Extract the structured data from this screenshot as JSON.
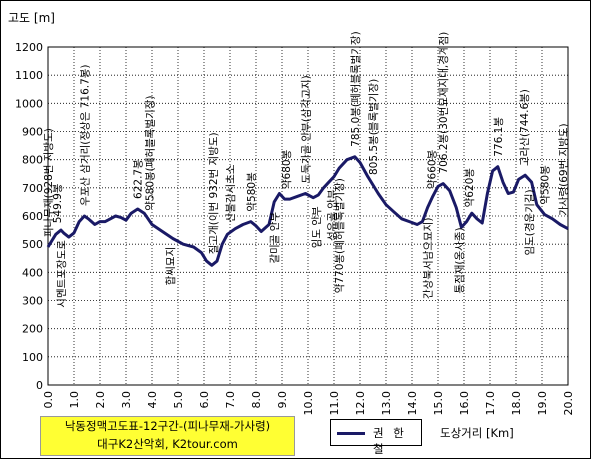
{
  "chart_data": {
    "type": "line",
    "ylabel": "고도 [m]",
    "xlabel": "도상거리 [Km]",
    "xlim": [
      0,
      20
    ],
    "ylim": [
      0,
      1200
    ],
    "x_ticks": [
      "0.0",
      "1.0",
      "2.0",
      "3.0",
      "4.0",
      "5.0",
      "6.0",
      "7.0",
      "8.0",
      "9.0",
      "10.0",
      "11.0",
      "12.0",
      "13.0",
      "14.0",
      "15.0",
      "16.0",
      "17.0",
      "18.0",
      "19.0",
      "20.0"
    ],
    "y_ticks": [
      "0",
      "100",
      "200",
      "300",
      "400",
      "500",
      "600",
      "700",
      "800",
      "900",
      "1000",
      "1100",
      "1200"
    ],
    "grid": true,
    "title_lines": [
      "낙동정맥고도표-12구간-(피나무재-가사령)",
      "대구K2산악회, K2tour.com"
    ],
    "series": [
      {
        "name": "권 한 철",
        "color": "#1a1a66",
        "x": [
          0.0,
          0.3,
          0.5,
          0.6,
          0.8,
          1.0,
          1.2,
          1.4,
          1.55,
          1.8,
          2.0,
          2.2,
          2.4,
          2.6,
          2.8,
          3.0,
          3.2,
          3.45,
          3.7,
          4.0,
          4.4,
          4.8,
          5.2,
          5.6,
          5.9,
          6.1,
          6.3,
          6.5,
          6.7,
          6.9,
          7.2,
          7.5,
          7.8,
          8.0,
          8.2,
          8.5,
          8.7,
          8.9,
          9.1,
          9.3,
          9.6,
          9.9,
          10.2,
          10.4,
          10.6,
          10.8,
          11.0,
          11.2,
          11.5,
          11.8,
          12.0,
          12.3,
          12.5,
          12.7,
          13.0,
          13.3,
          13.6,
          13.9,
          14.2,
          14.4,
          14.6,
          14.8,
          15.0,
          15.2,
          15.45,
          15.7,
          15.9,
          16.1,
          16.3,
          16.5,
          16.7,
          16.9,
          17.1,
          17.3,
          17.5,
          17.7,
          17.9,
          18.1,
          18.35,
          18.6,
          18.8,
          19.1,
          19.4,
          19.7,
          20.0
        ],
        "y": [
          490,
          535,
          550,
          540,
          525,
          540,
          580,
          600,
          590,
          570,
          580,
          580,
          590,
          600,
          595,
          585,
          610,
          625,
          610,
          570,
          545,
          520,
          500,
          490,
          470,
          440,
          425,
          440,
          500,
          535,
          555,
          570,
          580,
          565,
          545,
          570,
          650,
          680,
          660,
          660,
          670,
          680,
          665,
          675,
          700,
          720,
          740,
          770,
          800,
          810,
          790,
          740,
          710,
          680,
          640,
          615,
          590,
          580,
          570,
          580,
          630,
          670,
          705,
          715,
          690,
          630,
          560,
          580,
          610,
          590,
          575,
          680,
          760,
          775,
          720,
          680,
          685,
          730,
          745,
          720,
          640,
          605,
          590,
          570,
          555
        ]
      }
    ],
    "annotations": [
      {
        "x": 0.0,
        "text": "피나무재(928번 지방도)",
        "anchor": "up"
      },
      {
        "x": 0.35,
        "text": "549.9봉",
        "anchor": "up"
      },
      {
        "x": 0.5,
        "text": "시멘트포장도로",
        "anchor": "down"
      },
      {
        "x": 1.4,
        "text": "우포산 삼거리(정상은 716.7봉)",
        "anchor": "up"
      },
      {
        "x": 3.45,
        "text": "622.7봉",
        "anchor": "up"
      },
      {
        "x": 3.9,
        "text": "약580봉(폐허블록벌기장)",
        "anchor": "up"
      },
      {
        "x": 4.7,
        "text": "합씨묘지",
        "anchor": "down"
      },
      {
        "x": 6.35,
        "text": "질고개(이번 932번 지방도)",
        "anchor": "up"
      },
      {
        "x": 7.0,
        "text": "산불감시초소",
        "anchor": "up"
      },
      {
        "x": 7.8,
        "text": "약580봉",
        "anchor": "up"
      },
      {
        "x": 8.7,
        "text": "갈미골 안부",
        "anchor": "down"
      },
      {
        "x": 9.15,
        "text": "약680봉",
        "anchor": "up"
      },
      {
        "x": 9.9,
        "text": "도둑가골 안부(삼각고지)",
        "anchor": "up"
      },
      {
        "x": 10.3,
        "text": "임도 안부",
        "anchor": "down"
      },
      {
        "x": 10.9,
        "text": "성유골 안부",
        "anchor": "down"
      },
      {
        "x": 11.2,
        "text": "약770봉(폐허블록벌기장)",
        "anchor": "down"
      },
      {
        "x": 11.8,
        "text": "785.0봉(폐허블록벌기장)",
        "anchor": "up"
      },
      {
        "x": 12.5,
        "text": "805.5봉(블록벌기장)",
        "anchor": "up"
      },
      {
        "x": 14.6,
        "text": "간상북서남으묘지)",
        "anchor": "down"
      },
      {
        "x": 14.75,
        "text": "약660봉",
        "anchor": "up"
      },
      {
        "x": 15.2,
        "text": "706.2봉(30번묘재지대,경계점)",
        "anchor": "up"
      },
      {
        "x": 15.8,
        "text": "통점재(옹사종)",
        "anchor": "down"
      },
      {
        "x": 16.2,
        "text": "약620봉",
        "anchor": "up"
      },
      {
        "x": 17.3,
        "text": "776.1봉",
        "anchor": "up"
      },
      {
        "x": 18.3,
        "text": "고라산(744.6봉)",
        "anchor": "up"
      },
      {
        "x": 18.5,
        "text": "임도(경운기길)",
        "anchor": "down"
      },
      {
        "x": 19.1,
        "text": "약580봉",
        "anchor": "up"
      },
      {
        "x": 19.8,
        "text": "가사령(69번 지방도)",
        "anchor": "up"
      }
    ]
  }
}
